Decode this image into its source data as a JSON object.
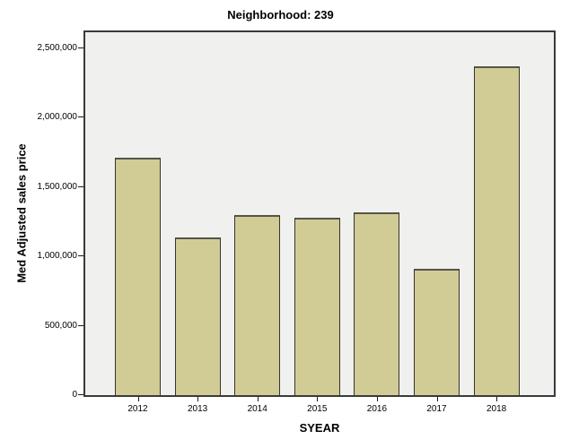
{
  "chart_data": {
    "type": "bar",
    "title": "Neighborhood: 239",
    "xlabel": "SYEAR",
    "ylabel": "Med Adjusted sales price",
    "categories": [
      "2012",
      "2013",
      "2014",
      "2015",
      "2016",
      "2017",
      "2018"
    ],
    "values": [
      1710000,
      1140000,
      1300000,
      1280000,
      1320000,
      910000,
      2370000
    ],
    "ylim": [
      0,
      2610000
    ],
    "yticks": [
      0,
      500000,
      1000000,
      1500000,
      2000000,
      2500000
    ],
    "ytick_labels": [
      "0",
      "500,000",
      "1,000,000",
      "1,500,000",
      "2,000,000",
      "2,500,000"
    ],
    "grid": "off",
    "legend": "none",
    "bar_color": "#d1cc96",
    "bar_border_color": "#35342a",
    "bar_border_top_color": "#55544a",
    "plot_bg_color": "#f0f0ee",
    "frame_color": "#3a3a3a",
    "tick_color": "#1a1a1a"
  }
}
